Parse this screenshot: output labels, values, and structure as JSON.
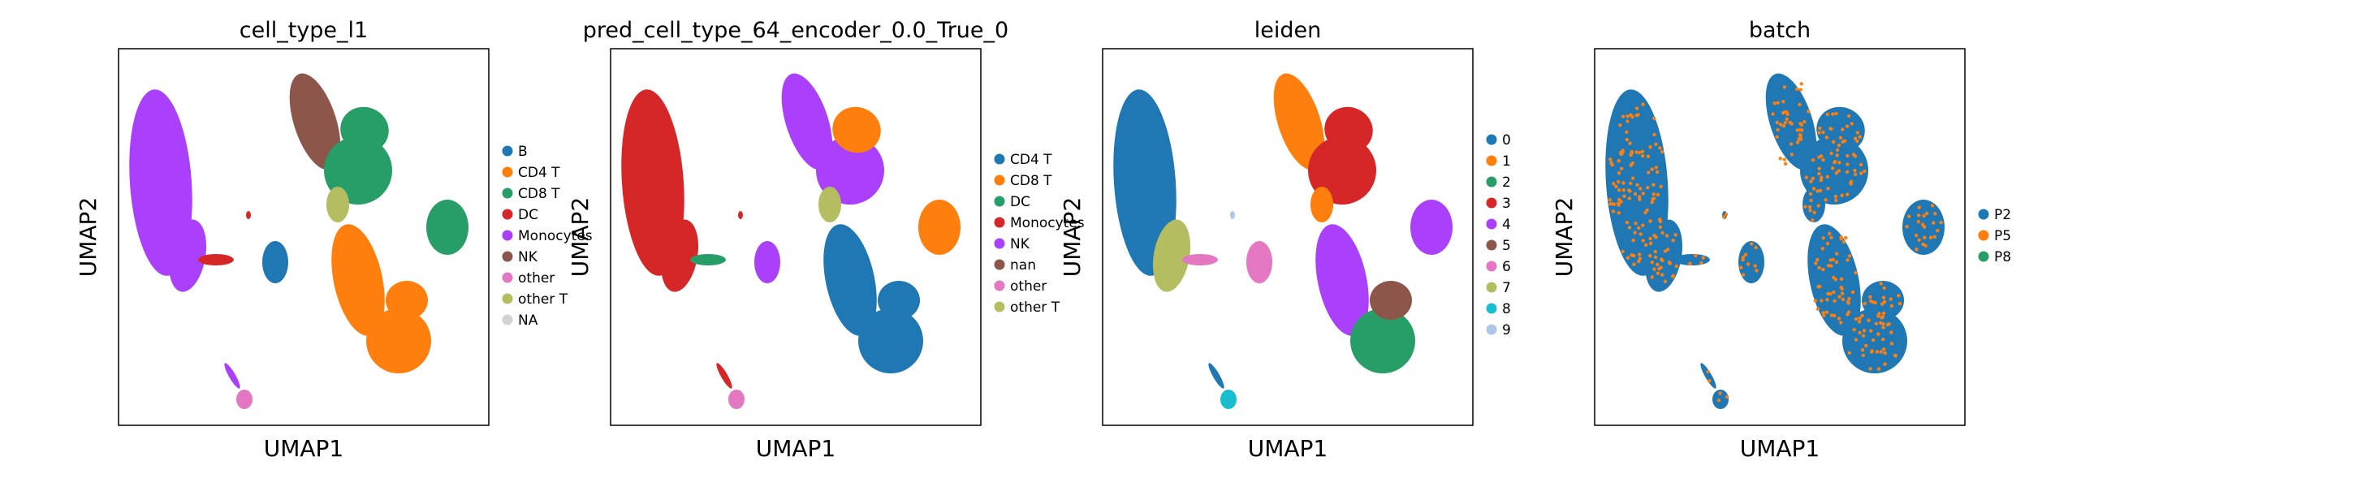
{
  "colors": {
    "c_blue": "#1f77b4",
    "c_orange": "#ff7f0e",
    "c_green": "#279e68",
    "c_red": "#d62728",
    "c_purple": "#aa40fc",
    "c_brown": "#8c564b",
    "c_pink": "#e377c2",
    "c_olive": "#b5bd61",
    "c_cyan": "#17becf",
    "c_lightblue": "#aec7e8",
    "c_na": "#d3d3d3"
  },
  "chart_data": [
    {
      "type": "scatter",
      "title": "cell_type_l1",
      "xlabel": "UMAP1",
      "ylabel": "UMAP2",
      "legend_position": "right",
      "legend": [
        {
          "label": "B",
          "color": "c_blue"
        },
        {
          "label": "CD4 T",
          "color": "c_orange"
        },
        {
          "label": "CD8 T",
          "color": "c_green"
        },
        {
          "label": "DC",
          "color": "c_red"
        },
        {
          "label": "Monocytes",
          "color": "c_purple"
        },
        {
          "label": "NK",
          "color": "c_brown"
        },
        {
          "label": "other",
          "color": "c_pink"
        },
        {
          "label": "other T",
          "color": "c_olive"
        },
        {
          "label": "NA",
          "color": "c_na"
        }
      ],
      "cluster_colors": [
        "c_purple",
        "c_purple",
        "c_red",
        "c_red",
        "c_blue",
        "c_brown",
        "c_green",
        "c_green",
        "c_orange",
        "c_orange",
        "c_orange",
        "c_olive",
        "c_green",
        "c_purple",
        "c_pink"
      ]
    },
    {
      "type": "scatter",
      "title": "pred_cell_type_64_encoder_0.0_True_0",
      "xlabel": "UMAP1",
      "ylabel": "UMAP2",
      "legend_position": "right",
      "legend": [
        {
          "label": "CD4 T",
          "color": "c_blue"
        },
        {
          "label": "CD8 T",
          "color": "c_orange"
        },
        {
          "label": "DC",
          "color": "c_green"
        },
        {
          "label": "Monocytes",
          "color": "c_red"
        },
        {
          "label": "NK",
          "color": "c_purple"
        },
        {
          "label": "nan",
          "color": "c_brown"
        },
        {
          "label": "other",
          "color": "c_pink"
        },
        {
          "label": "other T",
          "color": "c_olive"
        }
      ],
      "cluster_colors": [
        "c_red",
        "c_red",
        "c_green",
        "c_red",
        "c_purple",
        "c_purple",
        "c_purple",
        "c_orange",
        "c_blue",
        "c_blue",
        "c_blue",
        "c_olive",
        "c_orange",
        "c_red",
        "c_pink"
      ]
    },
    {
      "type": "scatter",
      "title": "leiden",
      "xlabel": "UMAP1",
      "ylabel": "UMAP2",
      "legend_position": "right",
      "legend": [
        {
          "label": "0",
          "color": "c_blue"
        },
        {
          "label": "1",
          "color": "c_orange"
        },
        {
          "label": "2",
          "color": "c_green"
        },
        {
          "label": "3",
          "color": "c_red"
        },
        {
          "label": "4",
          "color": "c_purple"
        },
        {
          "label": "5",
          "color": "c_brown"
        },
        {
          "label": "6",
          "color": "c_pink"
        },
        {
          "label": "7",
          "color": "c_olive"
        },
        {
          "label": "8",
          "color": "c_cyan"
        },
        {
          "label": "9",
          "color": "c_lightblue"
        }
      ],
      "cluster_colors": [
        "c_blue",
        "c_olive",
        "c_pink",
        "c_lightblue",
        "c_pink",
        "c_orange",
        "c_red",
        "c_purple",
        "c_purple",
        "c_green",
        "c_brown",
        "c_orange",
        "c_red",
        "c_blue",
        "c_cyan"
      ]
    },
    {
      "type": "scatter",
      "title": "batch",
      "xlabel": "UMAP1",
      "ylabel": "UMAP2",
      "legend_position": "right",
      "legend": [
        {
          "label": "P2",
          "color": "c_blue"
        },
        {
          "label": "P5",
          "color": "c_orange"
        },
        {
          "label": "P8",
          "color": "c_green"
        }
      ],
      "cluster_colors": [
        "c_blue",
        "c_blue",
        "c_blue",
        "c_blue",
        "c_blue",
        "c_blue",
        "c_blue",
        "c_blue",
        "c_blue",
        "c_blue",
        "c_blue",
        "c_blue",
        "c_blue",
        "c_blue",
        "c_blue"
      ],
      "speckle_color": "c_orange"
    }
  ]
}
